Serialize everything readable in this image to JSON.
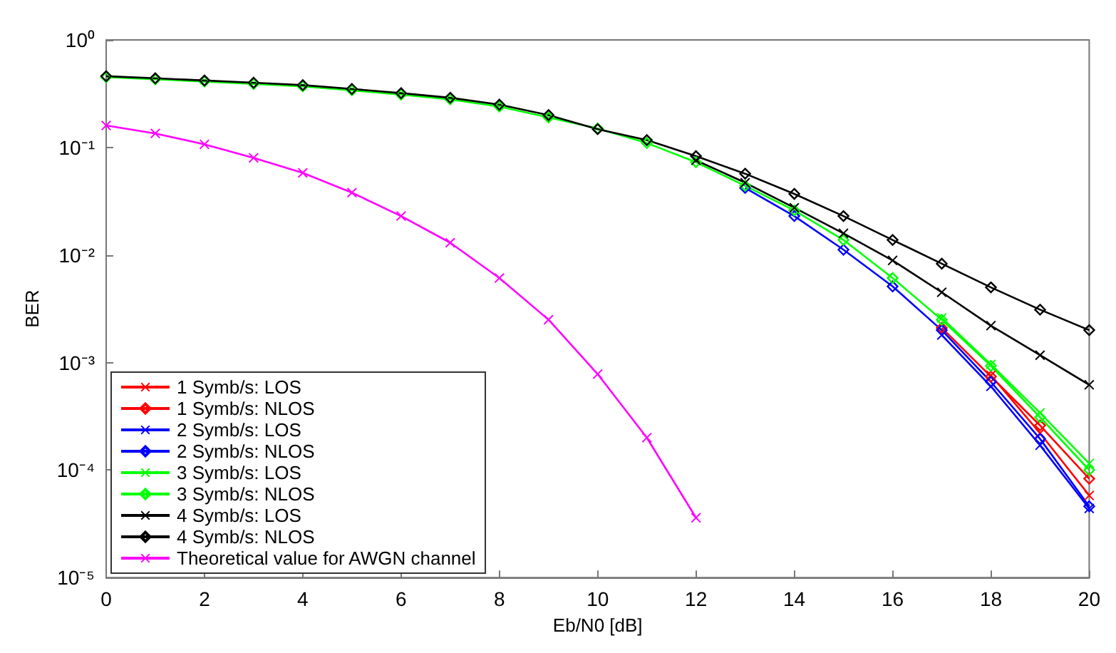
{
  "chart_data": {
    "type": "line",
    "xlabel": "Eb/N0 [dB]",
    "ylabel": "BER",
    "log": "y",
    "grid": false,
    "legend": "bottom left",
    "x": [
      0,
      1,
      2,
      3,
      4,
      5,
      6,
      7,
      8,
      9,
      10,
      11,
      12,
      13,
      14,
      15,
      16,
      17,
      18,
      19,
      20
    ],
    "xlim": [
      0,
      20
    ],
    "xticks": [
      0,
      2,
      4,
      6,
      8,
      10,
      12,
      14,
      16,
      18,
      20
    ],
    "ylim": [
      1e-05,
      1
    ],
    "yticks": [
      {
        "value": 1,
        "label": "10⁰"
      },
      {
        "value": 0.1,
        "label": "10⁻¹"
      },
      {
        "value": 0.01,
        "label": "10⁻²"
      },
      {
        "value": 0.001,
        "label": "10⁻³"
      },
      {
        "value": 0.0001,
        "label": "10⁻⁴"
      },
      {
        "value": 1e-05,
        "label": "10⁻⁵"
      }
    ],
    "series": [
      {
        "name": "1 Symb/s: LOS",
        "color": "#ff0000",
        "marker": "cross",
        "values": [
          null,
          null,
          null,
          null,
          null,
          null,
          null,
          null,
          null,
          null,
          null,
          null,
          null,
          null,
          null,
          null,
          null,
          null,
          0.00076,
          0.00022,
          5.8e-05
        ]
      },
      {
        "name": "1 Symb/s: NLOS",
        "color": "#ff0000",
        "marker": "diamond",
        "values": [
          null,
          null,
          null,
          null,
          null,
          null,
          null,
          null,
          null,
          null,
          null,
          null,
          null,
          null,
          null,
          null,
          null,
          0.0021,
          0.00074,
          0.00026,
          8.3e-05
        ]
      },
      {
        "name": "2 Symb/s: LOS",
        "color": "#0000ff",
        "marker": "cross",
        "values": [
          null,
          null,
          null,
          null,
          null,
          null,
          null,
          null,
          null,
          null,
          null,
          null,
          null,
          null,
          null,
          null,
          null,
          0.0018,
          0.0006,
          0.00017,
          4.4e-05
        ]
      },
      {
        "name": "2 Symb/s: NLOS",
        "color": "#0000ff",
        "marker": "diamond",
        "values": [
          null,
          null,
          null,
          null,
          null,
          null,
          null,
          null,
          null,
          null,
          null,
          null,
          null,
          0.042,
          0.023,
          0.0112,
          0.0051,
          0.002,
          0.00066,
          0.000195,
          4.6e-05
        ]
      },
      {
        "name": "3 Symb/s: LOS",
        "color": "#00ff00",
        "marker": "cross",
        "values": [
          null,
          null,
          null,
          null,
          null,
          null,
          null,
          null,
          null,
          null,
          null,
          null,
          null,
          null,
          null,
          null,
          null,
          0.0026,
          0.00096,
          0.00034,
          0.000115
        ]
      },
      {
        "name": "3 Symb/s: NLOS",
        "color": "#00ff00",
        "marker": "diamond",
        "values": [
          0.45,
          0.43,
          0.41,
          0.39,
          0.37,
          0.34,
          0.31,
          0.28,
          0.24,
          0.19,
          0.15,
          0.11,
          0.073,
          0.044,
          0.026,
          0.0138,
          0.0061,
          0.0025,
          0.00093,
          0.00031,
          0.0001
        ]
      },
      {
        "name": "4 Symb/s: LOS",
        "color": "#000000",
        "marker": "cross",
        "values": [
          null,
          null,
          null,
          null,
          null,
          null,
          null,
          null,
          null,
          null,
          null,
          null,
          0.076,
          0.047,
          0.0275,
          0.0159,
          0.0089,
          0.0045,
          0.0022,
          0.00117,
          0.00062
        ]
      },
      {
        "name": "4 Symb/s: NLOS",
        "color": "#000000",
        "marker": "diamond",
        "values": [
          0.46,
          0.44,
          0.42,
          0.4,
          0.38,
          0.35,
          0.32,
          0.29,
          0.25,
          0.2,
          0.148,
          0.117,
          0.083,
          0.057,
          0.037,
          0.023,
          0.0138,
          0.0083,
          0.005,
          0.0031,
          0.002
        ]
      },
      {
        "name": "Theoretical value for AWGN channel",
        "color": "#ff00ff",
        "marker": "cross",
        "x": [
          0,
          1,
          2,
          3,
          4,
          5,
          6,
          7,
          8,
          9,
          10,
          11,
          12
        ],
        "values": [
          0.16,
          0.135,
          0.107,
          0.08,
          0.058,
          0.038,
          0.023,
          0.013,
          0.0061,
          0.0025,
          0.00078,
          0.0002,
          3.6e-05
        ]
      }
    ]
  }
}
